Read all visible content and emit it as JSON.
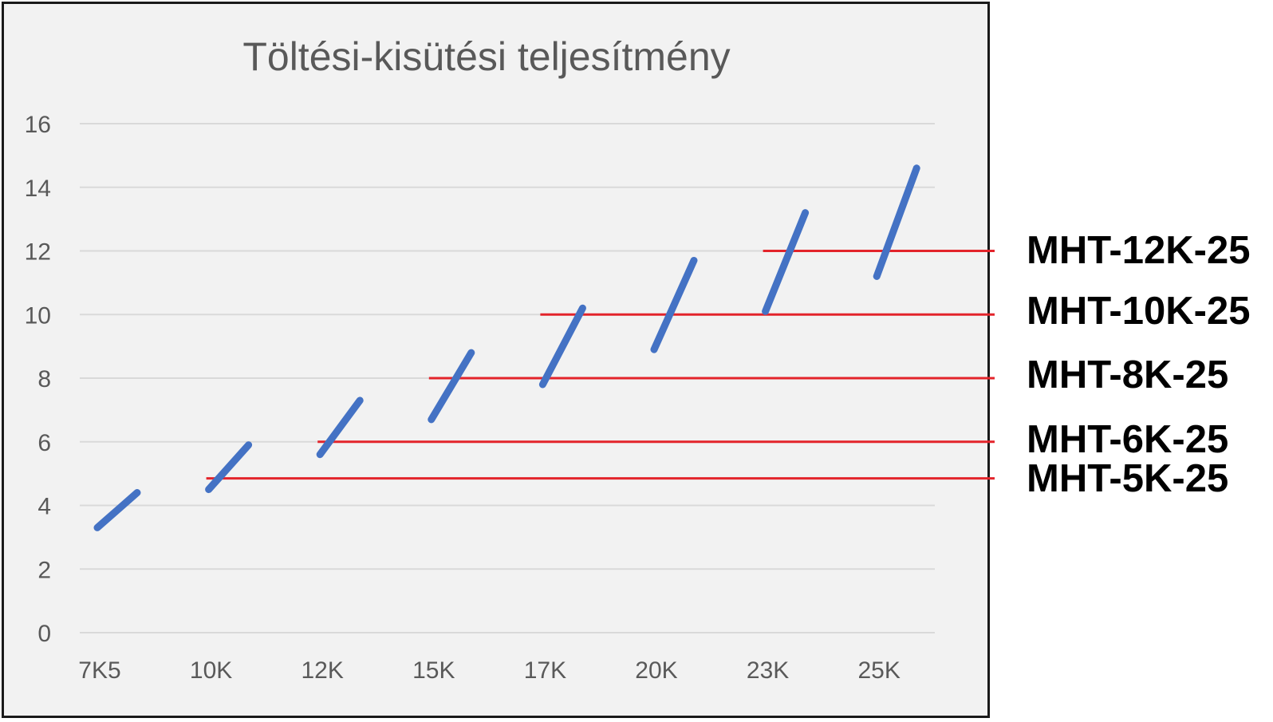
{
  "chart_data": {
    "type": "line",
    "title": "Töltési-kisütési teljesítmény",
    "categories": [
      "7K5",
      "10K",
      "12K",
      "15K",
      "17K",
      "20K",
      "23K",
      "25K"
    ],
    "ylim": [
      0,
      16
    ],
    "yticks": [
      0,
      2,
      4,
      6,
      8,
      10,
      12,
      14,
      16
    ],
    "grid": true,
    "series_color": "#4472c4",
    "reference_color": "#e3242b",
    "segments": [
      {
        "category": "7K5",
        "start": 3.3,
        "end": 4.4
      },
      {
        "category": "10K",
        "start": 4.5,
        "end": 5.9
      },
      {
        "category": "12K",
        "start": 5.6,
        "end": 7.3
      },
      {
        "category": "15K",
        "start": 6.7,
        "end": 8.8
      },
      {
        "category": "17K",
        "start": 7.8,
        "end": 10.2
      },
      {
        "category": "20K",
        "start": 8.9,
        "end": 11.7
      },
      {
        "category": "23K",
        "start": 10.1,
        "end": 13.2
      },
      {
        "category": "25K",
        "start": 11.2,
        "end": 14.6
      }
    ],
    "reference_lines": [
      {
        "label": "MHT-12K-25",
        "value": 12.0,
        "from_category": "23K"
      },
      {
        "label": "MHT-10K-25",
        "value": 10.0,
        "from_category": "17K"
      },
      {
        "label": "MHT-8K-25",
        "value": 8.0,
        "from_category": "15K"
      },
      {
        "label": "MHT-6K-25",
        "value": 6.0,
        "from_category": "12K"
      },
      {
        "label": "MHT-5K-25",
        "value": 4.85,
        "from_category": "10K"
      }
    ]
  }
}
